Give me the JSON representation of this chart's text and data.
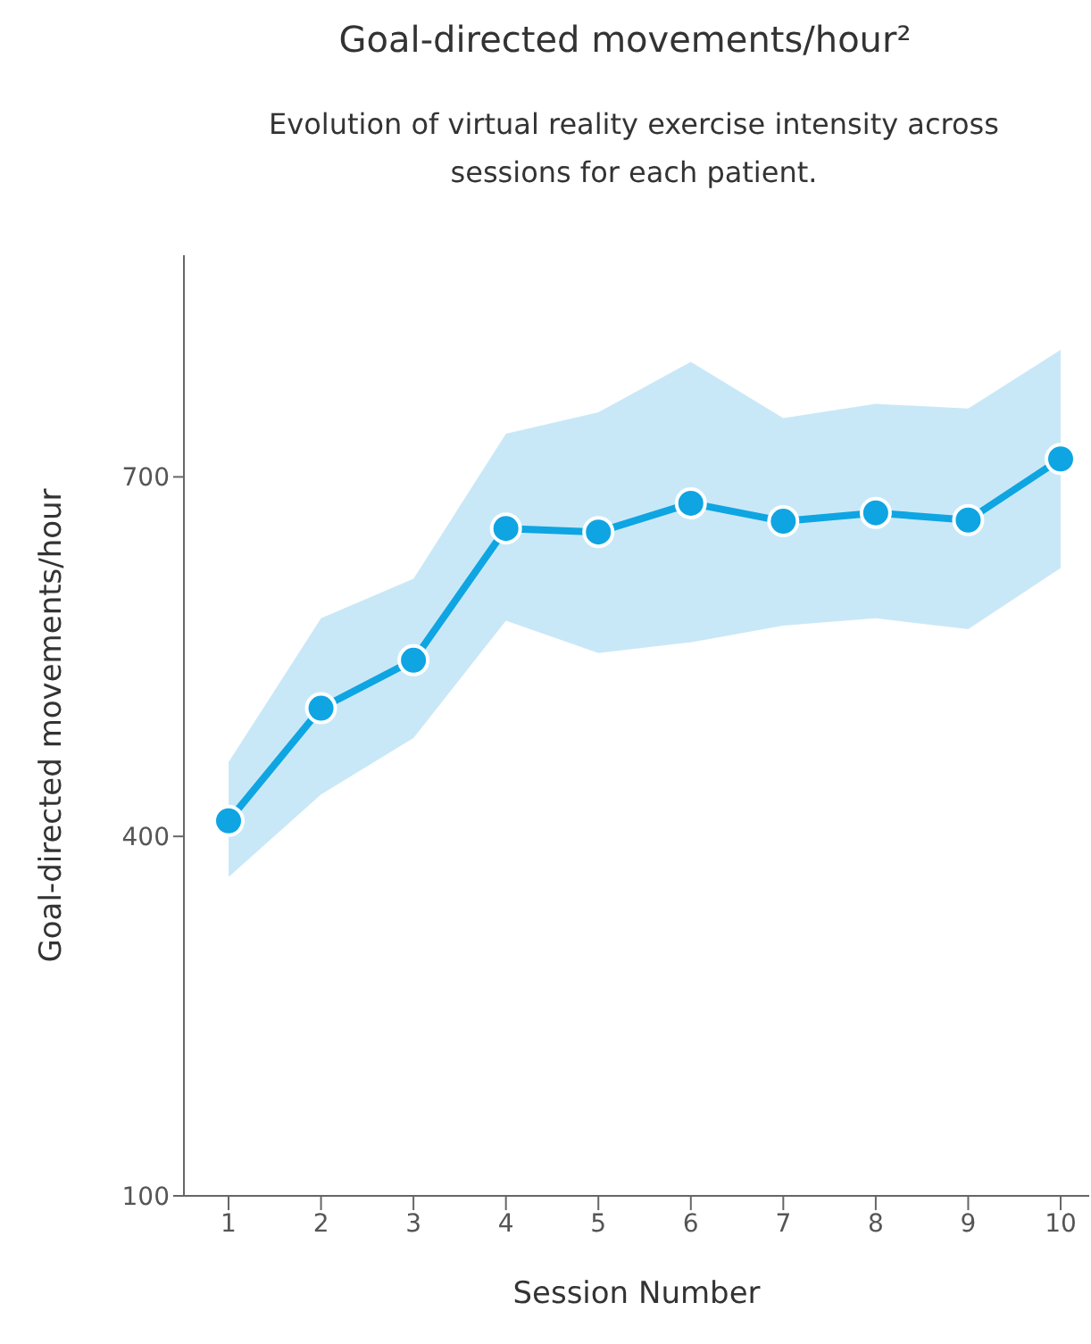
{
  "chart_data": {
    "type": "line",
    "title": "Goal-directed movements/hour²",
    "subtitle": "Evolution of virtual reality exercise intensity across sessions for each patient.",
    "xlabel": "Session Number",
    "ylabel": "Goal-directed movements/hour",
    "categories": [
      "1",
      "2",
      "3",
      "4",
      "5",
      "6",
      "7",
      "8",
      "9",
      "10"
    ],
    "series": [
      {
        "color": "#0ea5e2",
        "values": [
          413,
          507,
          547,
          657,
          654,
          678,
          663,
          670,
          664,
          715
        ],
        "lower": [
          366,
          435,
          482,
          580,
          553,
          562,
          576,
          582,
          573,
          624
        ],
        "upper": [
          462,
          582,
          615,
          736,
          754,
          796,
          749,
          761,
          757,
          806
        ]
      }
    ],
    "ylim": [
      100,
      885
    ],
    "yticks": [
      100,
      400,
      700
    ],
    "grid": false,
    "legend": false,
    "marker": "circle"
  }
}
